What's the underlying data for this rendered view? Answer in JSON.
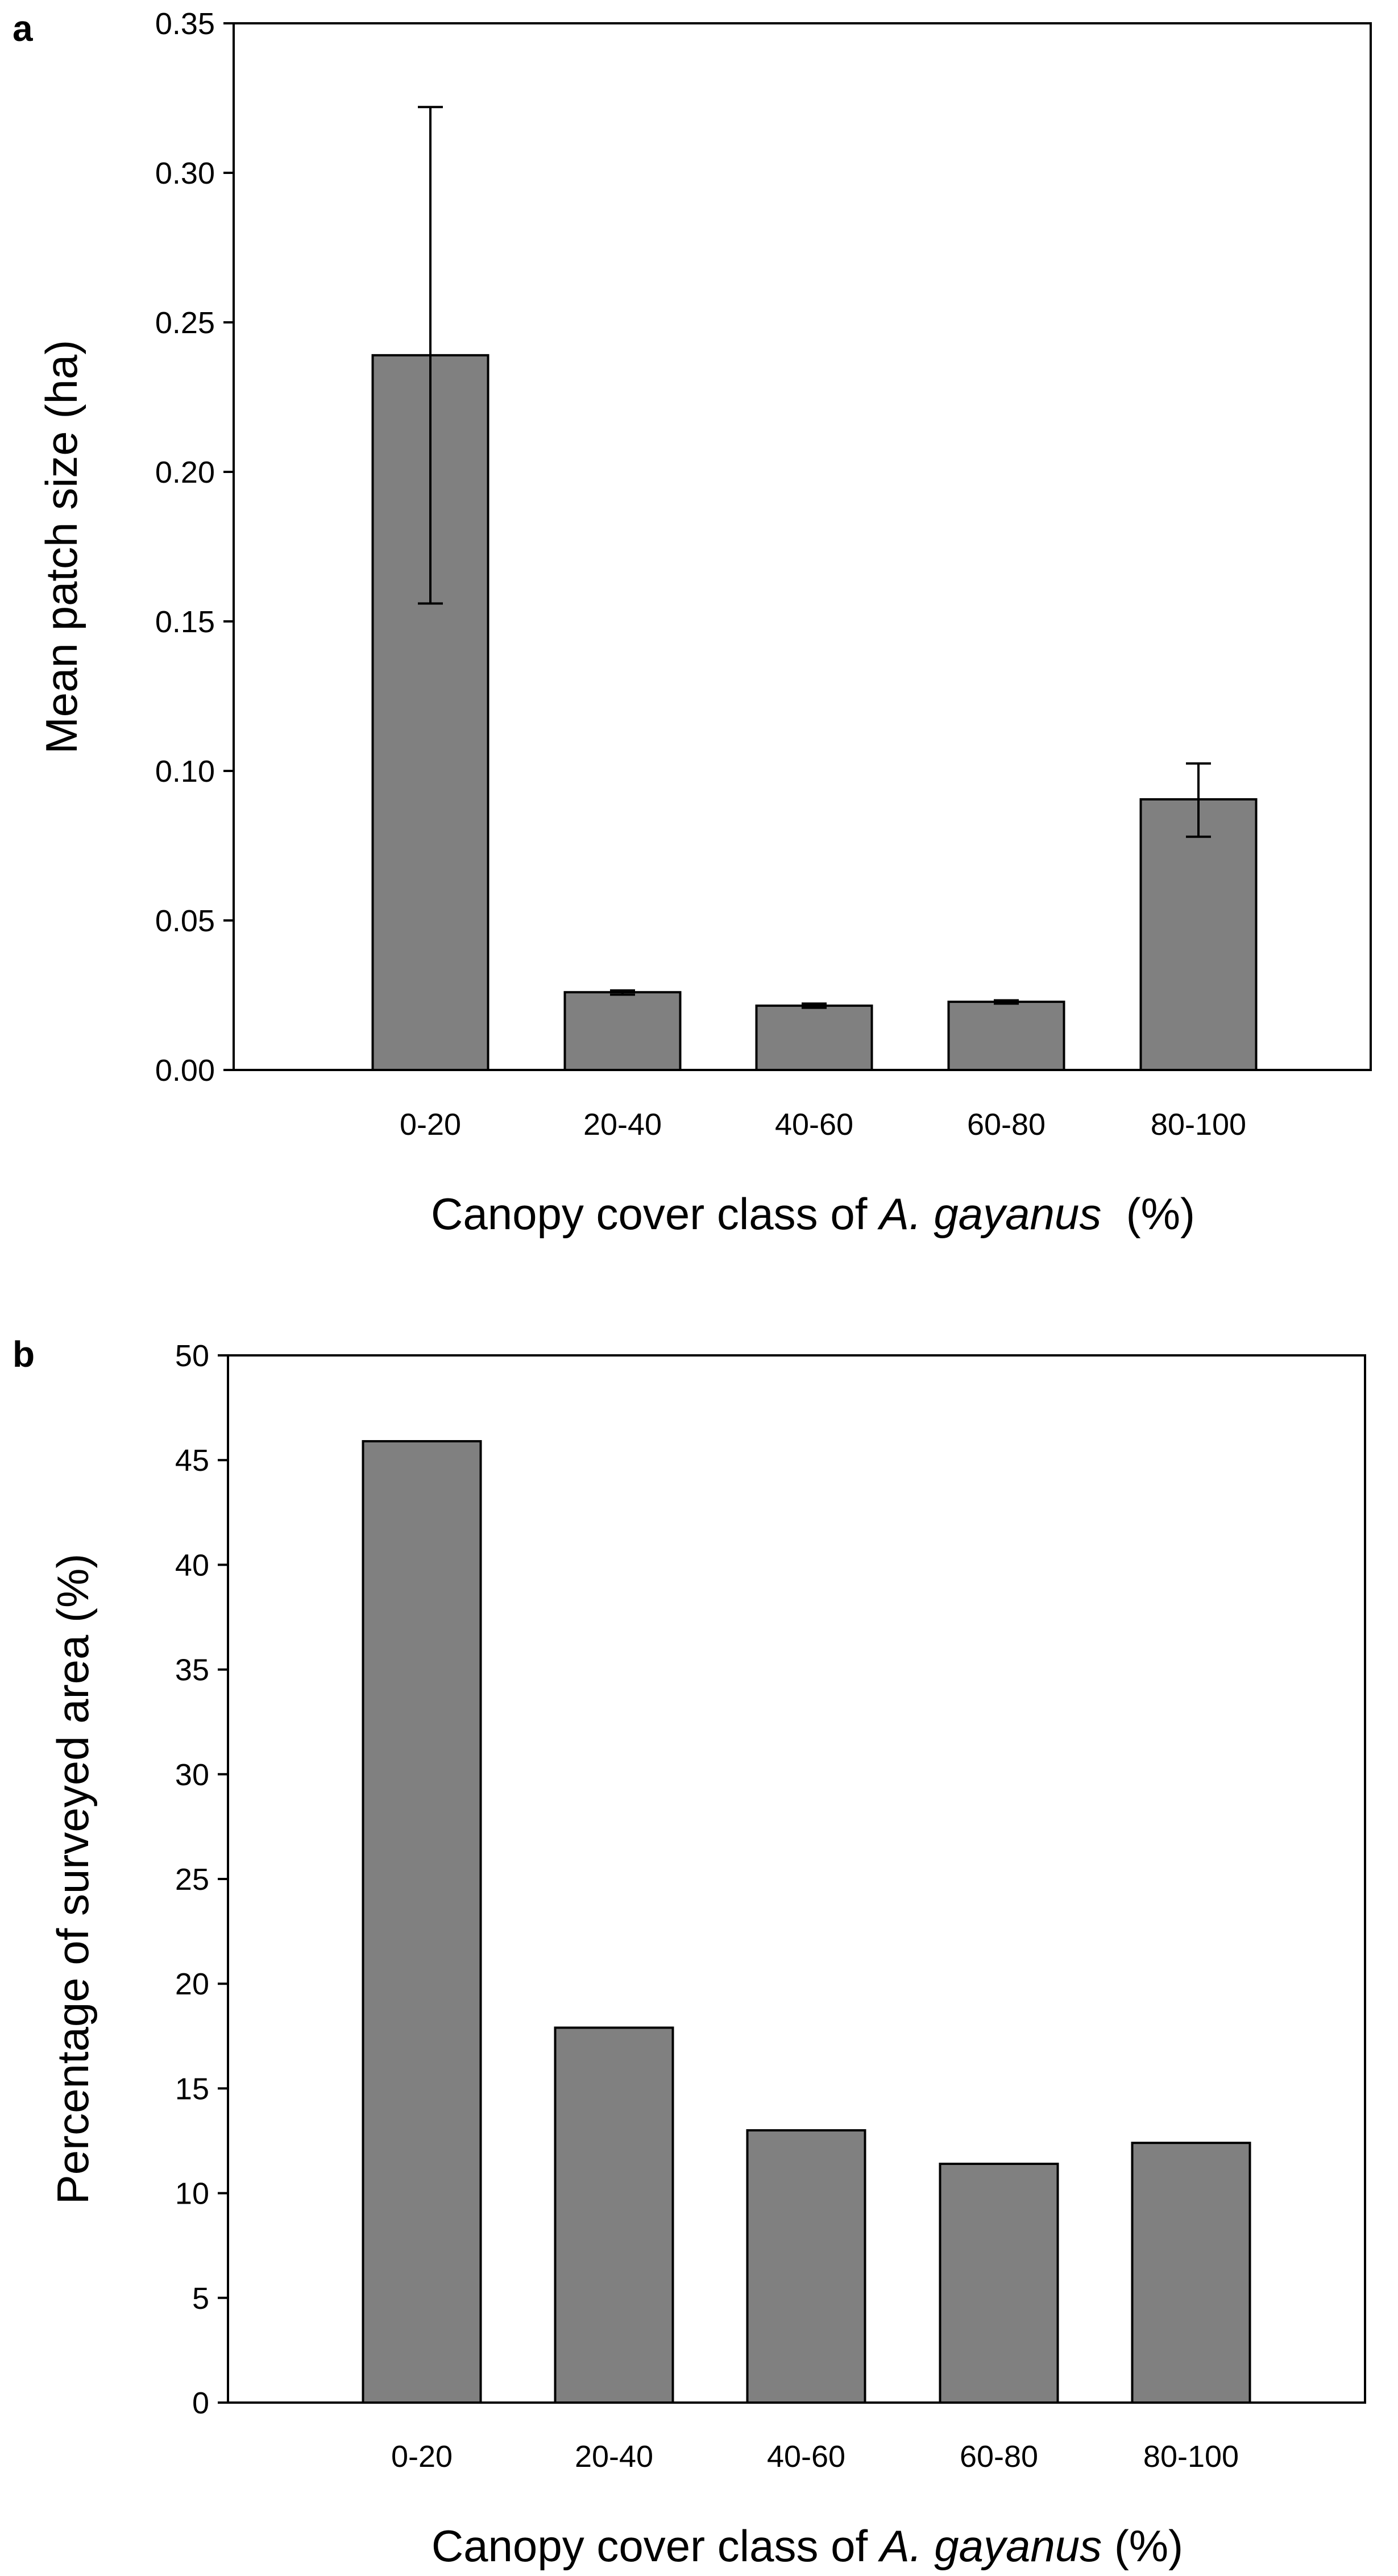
{
  "colors": {
    "bar_fill": "#808080",
    "bar_stroke": "#000000",
    "axis": "#000000",
    "background": "#ffffff"
  },
  "chart_data": [
    {
      "panel": "a",
      "type": "bar",
      "categories": [
        "0-20",
        "20-40",
        "40-60",
        "60-80",
        "80-100"
      ],
      "values": [
        0.239,
        0.026,
        0.0215,
        0.0228,
        0.0905
      ],
      "error_low": [
        0.156,
        0.0252,
        0.0208,
        0.0222,
        0.078
      ],
      "error_high": [
        0.322,
        0.0266,
        0.0222,
        0.0233,
        0.1025
      ],
      "ylim": [
        0,
        0.35
      ],
      "yticks": [
        "0.00",
        "0.05",
        "0.10",
        "0.15",
        "0.20",
        "0.25",
        "0.30",
        "0.35"
      ],
      "ylabel": "Mean patch size (ha)",
      "xlabel_pre": "Canopy cover class of ",
      "xlabel_italic": "A. gayanus",
      "xlabel_post": "  (%)",
      "grid": false
    },
    {
      "panel": "b",
      "type": "bar",
      "categories": [
        "0-20",
        "20-40",
        "40-60",
        "60-80",
        "80-100"
      ],
      "values": [
        45.9,
        17.9,
        13.0,
        11.4,
        12.4
      ],
      "ylim": [
        0,
        50
      ],
      "yticks": [
        "0",
        "5",
        "10",
        "15",
        "20",
        "25",
        "30",
        "35",
        "40",
        "45",
        "50"
      ],
      "ylabel": "Percentage of surveyed area (%)",
      "xlabel_pre": "Canopy cover class of ",
      "xlabel_italic": "A. gayanus",
      "xlabel_post": " (%)",
      "grid": false
    }
  ]
}
